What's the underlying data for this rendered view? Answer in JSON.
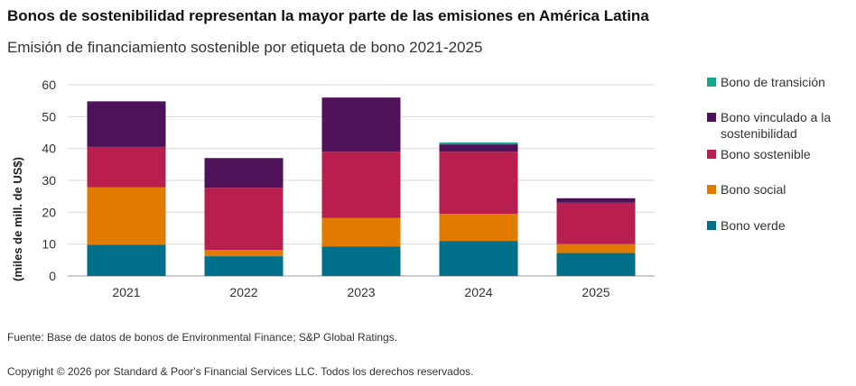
{
  "header": {
    "title": "Bonos de sostenibilidad representan la mayor parte de las emisiones en América Latina",
    "subtitle": "Emisión de financiamiento sostenible por etiqueta de bono 2021-2025"
  },
  "footer": {
    "source": "Fuente: Base de datos de bonos de Environmental Finance; S&P Global Ratings.",
    "copyright": "Copyright © 2026 por Standard & Poor's Financial Services LLC. Todos los derechos reservados."
  },
  "chart_data": {
    "type": "bar",
    "stacked": true,
    "categories": [
      "2021",
      "2022",
      "2023",
      "2024",
      "2025"
    ],
    "ylabel": "(miles de mill. de US$)",
    "ylim": [
      0,
      60
    ],
    "yticks": [
      0,
      10,
      20,
      30,
      40,
      50,
      60
    ],
    "grid": true,
    "legend_position": "right",
    "series": [
      {
        "name": "Bono verde",
        "color": "#006f8a",
        "values": [
          9.8,
          6.2,
          9.2,
          11.0,
          7.2
        ]
      },
      {
        "name": "Bono social",
        "color": "#e07b00",
        "values": [
          18.0,
          2.0,
          9.0,
          8.5,
          2.8
        ]
      },
      {
        "name": "Bono sostenible",
        "color": "#b81f4f",
        "values": [
          12.7,
          19.5,
          20.8,
          19.5,
          13.0
        ]
      },
      {
        "name": "Bono vinculado a la sostenibilidad",
        "color": "#4e1259",
        "values": [
          14.3,
          9.3,
          17.0,
          2.3,
          1.4
        ]
      },
      {
        "name": "Bono de transición",
        "color": "#1aa88c",
        "values": [
          0,
          0,
          0,
          0.6,
          0
        ]
      }
    ],
    "legend_order": [
      {
        "lines": [
          "Bono de transición"
        ],
        "color": "#1aa88c"
      },
      {
        "lines": [
          "Bono vinculado a la",
          "sostenibilidad"
        ],
        "color": "#4e1259"
      },
      {
        "lines": [
          "Bono sostenible"
        ],
        "color": "#b81f4f"
      },
      {
        "lines": [
          "Bono social"
        ],
        "color": "#e07b00"
      },
      {
        "lines": [
          "Bono verde"
        ],
        "color": "#006f8a"
      }
    ]
  }
}
